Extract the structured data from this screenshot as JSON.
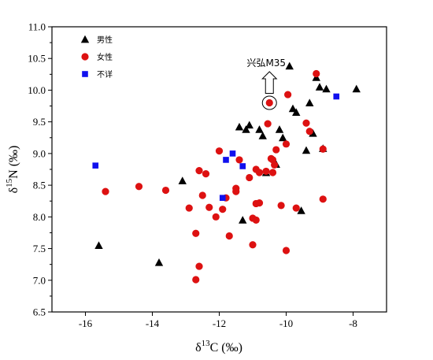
{
  "chart_data": {
    "type": "scatter",
    "xlabel": {
      "prefix": "δ",
      "sup": "13",
      "suffix": "C (‰)"
    },
    "ylabel": {
      "prefix": "δ",
      "sup": "15",
      "suffix": "N (‰)"
    },
    "xlim": [
      -17,
      -7
    ],
    "ylim": [
      6.5,
      11.0
    ],
    "xticks": [
      -16,
      -14,
      -12,
      -10,
      -8
    ],
    "xtick_labels": [
      "-16",
      "-14",
      "-12",
      "-10",
      "-8"
    ],
    "yticks": [
      6.5,
      7.0,
      7.5,
      8.0,
      8.5,
      9.0,
      9.5,
      10.0,
      10.5,
      11.0
    ],
    "ytick_labels": [
      "6.5",
      "7.0",
      "7.5",
      "8.0",
      "8.5",
      "9.0",
      "9.5",
      "10.0",
      "10.5",
      "11.0"
    ],
    "grid": false,
    "legend_position": "top-left",
    "series": [
      {
        "name": "男性",
        "marker": "triangle",
        "color": "#000000",
        "points": [
          [
            -15.6,
            7.55
          ],
          [
            -13.8,
            7.28
          ],
          [
            -13.1,
            8.57
          ],
          [
            -11.4,
            9.42
          ],
          [
            -11.2,
            9.38
          ],
          [
            -11.1,
            9.45
          ],
          [
            -11.3,
            7.95
          ],
          [
            -10.7,
            9.28
          ],
          [
            -10.8,
            9.38
          ],
          [
            -10.6,
            8.7
          ],
          [
            -10.3,
            8.83
          ],
          [
            -10.2,
            9.38
          ],
          [
            -10.1,
            9.25
          ],
          [
            -9.9,
            10.38
          ],
          [
            -9.8,
            9.71
          ],
          [
            -9.7,
            9.65
          ],
          [
            -9.55,
            8.1
          ],
          [
            -9.4,
            9.05
          ],
          [
            -9.3,
            9.8
          ],
          [
            -9.2,
            9.32
          ],
          [
            -9.1,
            10.2
          ],
          [
            -9.0,
            10.05
          ],
          [
            -8.9,
            9.08
          ],
          [
            -8.8,
            10.02
          ],
          [
            -7.9,
            10.02
          ]
        ]
      },
      {
        "name": "女性",
        "marker": "circle",
        "color": "#dd1111",
        "points": [
          [
            -15.4,
            8.4
          ],
          [
            -14.4,
            8.48
          ],
          [
            -13.6,
            8.42
          ],
          [
            -12.9,
            8.14
          ],
          [
            -12.7,
            7.74
          ],
          [
            -12.7,
            7.01
          ],
          [
            -12.6,
            7.22
          ],
          [
            -12.6,
            8.73
          ],
          [
            -12.5,
            8.34
          ],
          [
            -12.4,
            8.68
          ],
          [
            -12.3,
            8.15
          ],
          [
            -12.1,
            8.0
          ],
          [
            -12.0,
            9.04
          ],
          [
            -11.9,
            8.12
          ],
          [
            -11.8,
            8.3
          ],
          [
            -11.7,
            7.7
          ],
          [
            -11.5,
            8.45
          ],
          [
            -11.5,
            8.4
          ],
          [
            -11.4,
            8.9
          ],
          [
            -11.1,
            8.62
          ],
          [
            -11.0,
            7.98
          ],
          [
            -11.0,
            7.56
          ],
          [
            -10.9,
            8.21
          ],
          [
            -10.9,
            7.95
          ],
          [
            -10.9,
            8.75
          ],
          [
            -10.8,
            8.22
          ],
          [
            -10.8,
            8.7
          ],
          [
            -10.6,
            8.72
          ],
          [
            -10.55,
            9.47
          ],
          [
            -10.45,
            8.92
          ],
          [
            -10.4,
            8.9
          ],
          [
            -10.35,
            8.82
          ],
          [
            -10.4,
            8.7
          ],
          [
            -10.3,
            9.06
          ],
          [
            -10.15,
            8.18
          ],
          [
            -10.5,
            9.8
          ],
          [
            -10.0,
            9.15
          ],
          [
            -10.0,
            7.47
          ],
          [
            -9.95,
            9.93
          ],
          [
            -9.7,
            8.14
          ],
          [
            -9.4,
            9.48
          ],
          [
            -9.3,
            9.35
          ],
          [
            -9.1,
            10.26
          ],
          [
            -8.9,
            8.28
          ],
          [
            -8.9,
            9.07
          ]
        ]
      },
      {
        "name": "不详",
        "marker": "square",
        "color": "#1010ee",
        "points": [
          [
            -15.7,
            8.81
          ],
          [
            -11.9,
            8.3
          ],
          [
            -11.8,
            8.9
          ],
          [
            -11.6,
            9.0
          ],
          [
            -11.3,
            8.8
          ],
          [
            -8.5,
            9.9
          ]
        ]
      }
    ],
    "annotation": {
      "text": "兴弘M35",
      "target": [
        -10.5,
        9.8
      ]
    }
  }
}
